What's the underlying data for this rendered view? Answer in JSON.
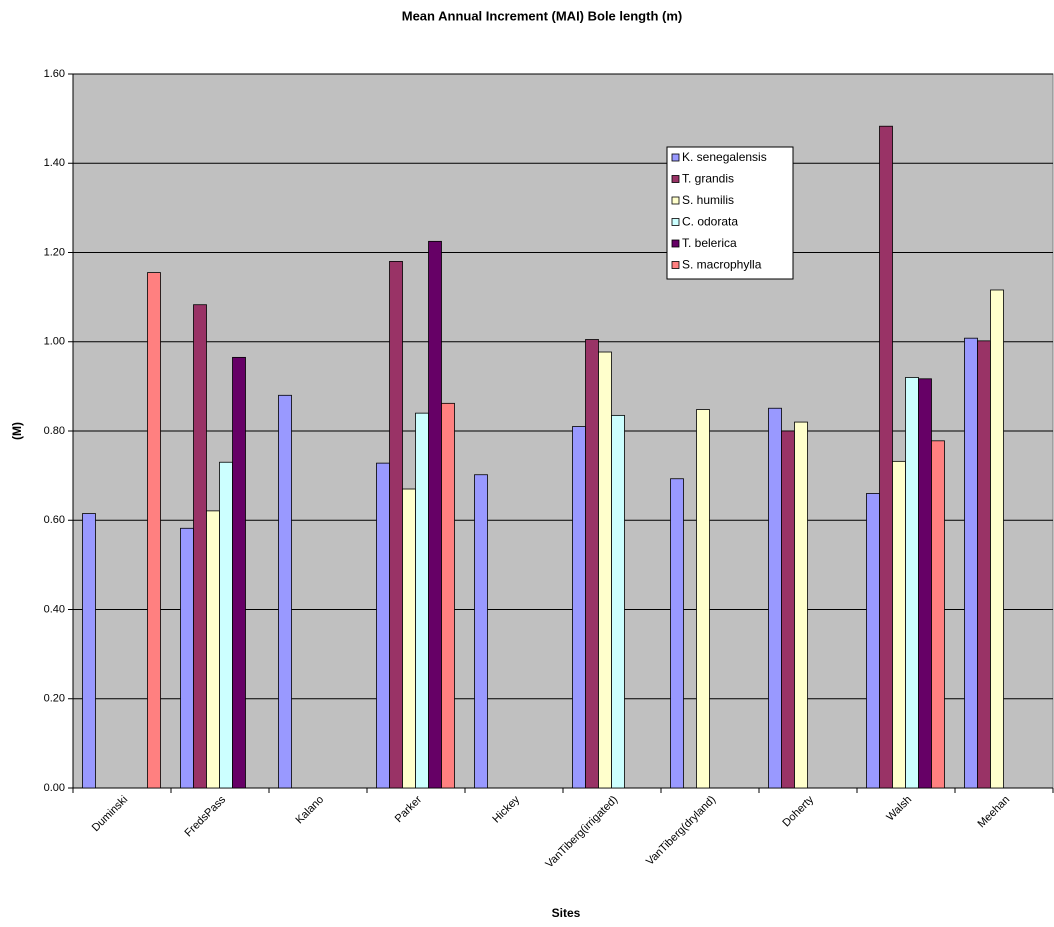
{
  "chart_data": {
    "type": "bar",
    "title": "Mean Annual Increment (MAI) Bole length (m)",
    "x_label": "Sites",
    "y_label": "(M)",
    "categories": [
      "Duminski",
      "FredsPass",
      "Kalano",
      "Parker",
      "Hickey",
      "VanTiberg(irrigated)",
      "VanTiberg(dryland)",
      "Doherty",
      "Walsh",
      "Meehan"
    ],
    "series": [
      {
        "name": "K. senegalensis",
        "color": "#9999ff",
        "values": [
          0.615,
          0.582,
          0.88,
          0.728,
          0.702,
          0.81,
          0.693,
          0.851,
          0.66,
          1.008
        ]
      },
      {
        "name": "T. grandis",
        "color": "#993366",
        "values": [
          null,
          1.083,
          null,
          1.18,
          null,
          1.005,
          null,
          0.8,
          1.483,
          1.002
        ]
      },
      {
        "name": "S. humilis",
        "color": "#ffffcc",
        "values": [
          null,
          0.621,
          null,
          0.67,
          null,
          0.977,
          0.848,
          0.82,
          0.732,
          1.116
        ]
      },
      {
        "name": "C. odorata",
        "color": "#ccffff",
        "values": [
          null,
          0.73,
          null,
          0.84,
          null,
          0.835,
          null,
          null,
          0.92,
          null
        ]
      },
      {
        "name": "T. belerica",
        "color": "#660066",
        "values": [
          null,
          0.965,
          null,
          1.225,
          null,
          null,
          null,
          null,
          0.917,
          null
        ]
      },
      {
        "name": "S. macrophylla",
        "color": "#ff8080",
        "values": [
          1.155,
          null,
          null,
          0.862,
          null,
          null,
          null,
          null,
          0.778,
          null
        ]
      }
    ],
    "ylim": [
      0,
      1.6
    ],
    "yticks": [
      {
        "value": 0,
        "label": "0.00"
      },
      {
        "value": 0.2,
        "label": "0.20"
      },
      {
        "value": 0.4,
        "label": "0.40"
      },
      {
        "value": 0.6,
        "label": "0.60"
      },
      {
        "value": 0.8,
        "label": "0.80"
      },
      {
        "value": 1,
        "label": "1.00"
      },
      {
        "value": 1.2,
        "label": "1.20"
      },
      {
        "value": 1.4,
        "label": "1.40"
      },
      {
        "value": 1.6,
        "label": "1.60"
      }
    ],
    "grid": true,
    "plot_background": "#c0c0c0"
  }
}
